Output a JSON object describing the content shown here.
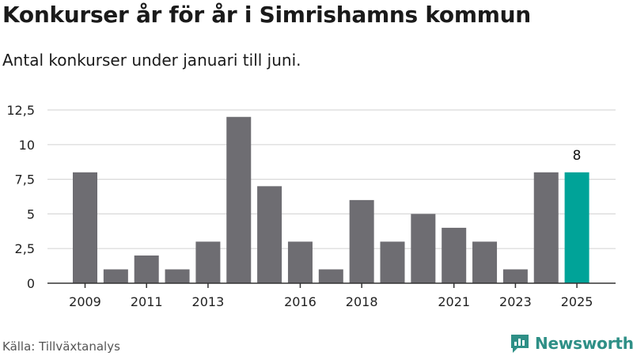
{
  "title": "Konkurser år för år i Simrishamns kommun",
  "subtitle": "Antal konkurser under januari till juni.",
  "source": "Källa: Tillväxtanalys",
  "brand": {
    "name": "Newsworthy",
    "icon": "newsworthy-logo-icon"
  },
  "colors": {
    "bar": "#6e6d72",
    "highlight": "#00a398",
    "grid": "#d9d9d9",
    "axis": "#333333"
  },
  "chart_data": {
    "type": "bar",
    "categories": [
      "2009",
      "2010",
      "2011",
      "2012",
      "2013",
      "2014",
      "2015",
      "2016",
      "2017",
      "2018",
      "2019",
      "2020",
      "2021",
      "2022",
      "2023",
      "2024",
      "2025"
    ],
    "values": [
      8,
      1,
      2,
      1,
      3,
      12,
      7,
      3,
      1,
      6,
      3,
      5,
      4,
      3,
      1,
      8,
      8
    ],
    "x_tick_labels": [
      "2009",
      "2011",
      "2013",
      "2016",
      "2018",
      "2021",
      "2023",
      "2025"
    ],
    "y_ticks": [
      "0",
      "2,5",
      "5",
      "7,5",
      "10",
      "12,5"
    ],
    "ylim": [
      0,
      12.5
    ],
    "highlight_category": "2025",
    "data_labels": [
      {
        "category": "2025",
        "text": "8"
      }
    ],
    "grid": true
  }
}
